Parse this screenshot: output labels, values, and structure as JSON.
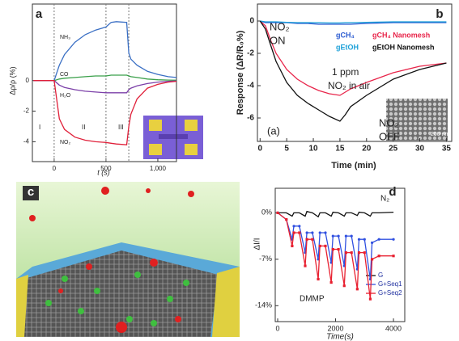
{
  "chart_data": [
    {
      "type": "line",
      "label": "a",
      "xlabel": "t (s)",
      "ylabel": "Δρ/ρ (%)",
      "xlim": [
        -210,
        1180
      ],
      "ylim": [
        -5.3,
        5
      ],
      "xticks": [
        0,
        500,
        {
          "value": 1000,
          "label": "1,000"
        }
      ],
      "yticks": [
        0,
        -2,
        -4
      ],
      "vlines": [
        0,
        500,
        720
      ],
      "annotations": [
        "I",
        "II",
        "III"
      ],
      "x": [
        -200,
        0,
        50,
        100,
        200,
        300,
        400,
        500,
        550,
        600,
        700,
        720,
        740,
        800,
        900,
        1000,
        1100,
        1180
      ],
      "series": [
        {
          "name": "NH₃",
          "color": "#3a6fc4",
          "values": [
            0,
            0,
            1.0,
            1.7,
            2.5,
            3.0,
            3.3,
            3.5,
            3.8,
            3.85,
            3.8,
            1.8,
            1.4,
            1.0,
            0.6,
            0.4,
            0.25,
            0.2
          ]
        },
        {
          "name": "CO",
          "color": "#3aa04a",
          "values": [
            0,
            0,
            0.1,
            0.15,
            0.2,
            0.25,
            0.3,
            0.3,
            0.35,
            0.35,
            0.35,
            0.3,
            0.25,
            0.2,
            0.1,
            0.05,
            0.03,
            0.02
          ]
        },
        {
          "name": "H₂O",
          "color": "#7b3fa8",
          "values": [
            0,
            0,
            -0.3,
            -0.45,
            -0.6,
            -0.7,
            -0.75,
            -0.8,
            -0.8,
            -0.8,
            -0.8,
            -0.6,
            -0.5,
            -0.35,
            -0.2,
            -0.1,
            -0.05,
            -0.03
          ]
        },
        {
          "name": "NO₂",
          "color": "#e0203a",
          "values": [
            0,
            0,
            -2.5,
            -3.2,
            -3.7,
            -3.9,
            -4.0,
            -4.05,
            -4.1,
            -4.15,
            -4.2,
            -3.0,
            -2.2,
            -1.2,
            -0.5,
            -0.25,
            -0.1,
            -0.05
          ]
        }
      ]
    },
    {
      "type": "line",
      "label": "b",
      "xlabel": "Time (min)",
      "ylabel": "Response (ΔR/R₀%)",
      "xlim": [
        -0.5,
        36
      ],
      "ylim": [
        -7.45,
        1.05
      ],
      "xticks": [
        0,
        5,
        10,
        15,
        20,
        25,
        30,
        35
      ],
      "yticks": [
        0,
        -2,
        -4,
        -6
      ],
      "annotations": [
        "NO₂",
        "ON",
        "1 ppm",
        "NO₂ in air",
        "NO₂",
        "OFF",
        "(a)",
        "200 nm"
      ],
      "x": [
        0,
        1,
        2,
        3,
        5,
        7,
        9,
        11,
        13,
        15,
        16,
        17,
        20,
        25,
        30,
        35
      ],
      "series": [
        {
          "name": "gCH₄",
          "color": "#2a5ad0",
          "values": [
            0,
            -0.1,
            -0.1,
            -0.1,
            -0.1,
            -0.15,
            -0.15,
            -0.2,
            -0.2,
            -0.2,
            -0.2,
            -0.2,
            -0.15,
            -0.1,
            -0.1,
            -0.1
          ]
        },
        {
          "name": "gCH₄ Nanomesh",
          "color": "#e8254a",
          "values": [
            0,
            -0.3,
            -1.2,
            -2.0,
            -3.0,
            -3.6,
            -4.0,
            -4.3,
            -4.5,
            -4.6,
            -4.4,
            -4.2,
            -3.8,
            -3.2,
            -2.8,
            -2.6
          ]
        },
        {
          "name": "gEtOH",
          "color": "#1ca0d8",
          "values": [
            0,
            -0.05,
            -0.05,
            -0.05,
            -0.08,
            -0.1,
            -0.1,
            -0.1,
            -0.12,
            -0.12,
            -0.1,
            -0.1,
            -0.08,
            -0.05,
            -0.05,
            -0.05
          ]
        },
        {
          "name": "gEtOH Nanomesh",
          "color": "#111111",
          "values": [
            0,
            -0.5,
            -1.5,
            -2.5,
            -3.8,
            -4.6,
            -5.1,
            -5.5,
            -5.9,
            -6.2,
            -5.8,
            -5.3,
            -4.6,
            -3.6,
            -3.0,
            -2.6
          ]
        }
      ]
    },
    {
      "type": "image",
      "label": "c"
    },
    {
      "type": "line",
      "label": "d",
      "xlabel": "Time(s)",
      "ylabel": "ΔI/I",
      "xlim": [
        -84,
        4390
      ],
      "ylim": [
        -16.4,
        3.7
      ],
      "xticks": [
        0,
        2000,
        4000
      ],
      "yticks": [
        {
          "value": 0,
          "label": "0%"
        },
        {
          "value": -7,
          "label": "-7%"
        },
        {
          "value": -14,
          "label": "-14%"
        }
      ],
      "annotations": [
        "N₂",
        "DMMP"
      ],
      "x": [
        0,
        300,
        500,
        560,
        750,
        950,
        1010,
        1200,
        1400,
        1460,
        1650,
        1850,
        1910,
        2100,
        2300,
        2360,
        2550,
        2750,
        2810,
        3000,
        3200,
        3260,
        3500,
        4000
      ],
      "series": [
        {
          "name": "G",
          "color": "#111111",
          "values": [
            0,
            0,
            -0.5,
            0,
            0,
            -0.5,
            0.2,
            0,
            -0.6,
            0,
            0,
            -0.5,
            0.1,
            0,
            -0.5,
            0,
            0,
            -0.4,
            0.1,
            0,
            -0.5,
            0,
            0,
            0.1
          ]
        },
        {
          "name": "G+Seq1",
          "color": "#3050e0",
          "values": [
            0,
            -1,
            -4,
            -2,
            -2,
            -6,
            -3,
            -3,
            -7,
            -3,
            -3,
            -7.5,
            -3.5,
            -3.5,
            -8,
            -3.5,
            -3.5,
            -8.5,
            -4,
            -4,
            -10,
            -4.5,
            -4,
            -4
          ]
        },
        {
          "name": "G+Seq2",
          "color": "#e82030",
          "values": [
            0,
            -1,
            -5,
            -3,
            -3,
            -8,
            -4,
            -4,
            -10,
            -5,
            -5,
            -10.5,
            -5.5,
            -5.5,
            -11,
            -6,
            -6,
            -11.5,
            -6,
            -6,
            -13,
            -7,
            -6.5,
            -6.5
          ]
        }
      ]
    }
  ]
}
